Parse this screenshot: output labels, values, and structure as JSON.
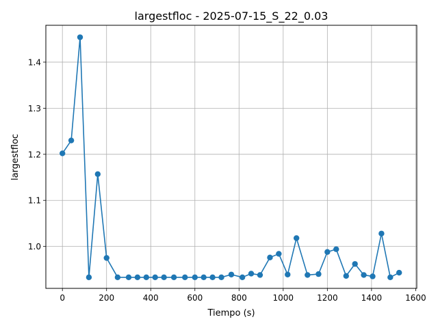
{
  "chart_data": {
    "type": "line",
    "title": "largestfloc - 2025-07-15_S_22_0.03",
    "xlabel": "Tiempo (s)",
    "ylabel": "largestfloc",
    "xlim": [
      -75,
      1605
    ],
    "ylim": [
      0.909,
      1.48
    ],
    "xticks": [
      0,
      200,
      400,
      600,
      800,
      1000,
      1200,
      1400,
      1600
    ],
    "yticks": [
      1.0,
      1.1,
      1.2,
      1.3,
      1.4
    ],
    "xtick_labels": [
      "0",
      "200",
      "400",
      "600",
      "800",
      "1000",
      "1200",
      "1400",
      "1600"
    ],
    "ytick_labels": [
      "1.0",
      "1.1",
      "1.2",
      "1.3",
      "1.4"
    ],
    "grid": true,
    "color": "#1f77b4",
    "marker": "circle",
    "series": [
      {
        "x": [
          0,
          40,
          80,
          120,
          160,
          200,
          250,
          300,
          340,
          380,
          420,
          460,
          505,
          555,
          600,
          640,
          680,
          720,
          765,
          815,
          855,
          895,
          940,
          980,
          1020,
          1060,
          1110,
          1160,
          1200,
          1240,
          1285,
          1325,
          1365,
          1405,
          1445,
          1485,
          1525
        ],
        "y": [
          1.202,
          1.23,
          1.454,
          0.933,
          1.157,
          0.975,
          0.933,
          0.933,
          0.933,
          0.933,
          0.933,
          0.933,
          0.933,
          0.933,
          0.933,
          0.933,
          0.933,
          0.933,
          0.939,
          0.933,
          0.941,
          0.938,
          0.976,
          0.984,
          0.939,
          1.018,
          0.938,
          0.94,
          0.988,
          0.994,
          0.936,
          0.962,
          0.938,
          0.935,
          1.028,
          0.933,
          0.943
        ]
      }
    ]
  }
}
